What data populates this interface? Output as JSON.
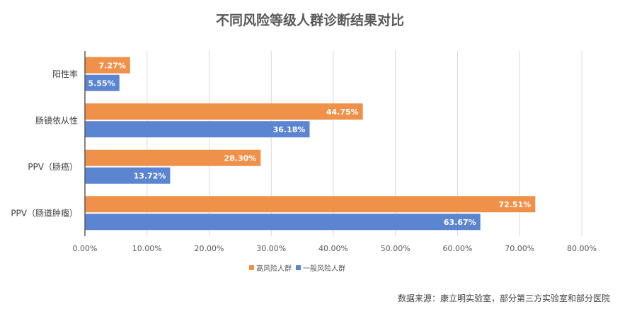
{
  "chart_data": {
    "type": "bar",
    "orientation": "horizontal",
    "title": "不同风险等级人群诊断结果对比",
    "categories": [
      "阳性率",
      "肠镜依从性",
      "PPV（肠癌）",
      "PPV（肠道肿瘤）"
    ],
    "series": [
      {
        "name": "高风险人群",
        "color": "#F0914A",
        "values": [
          7.27,
          44.75,
          28.3,
          72.51
        ],
        "labels": [
          "7.27%",
          "44.75%",
          "28.30%",
          "72.51%"
        ]
      },
      {
        "name": "一般风险人群",
        "color": "#5B84D1",
        "values": [
          5.55,
          36.18,
          13.72,
          63.67
        ],
        "labels": [
          "5.55%",
          "36.18%",
          "13.72%",
          "63.67%"
        ]
      }
    ],
    "xlim": [
      0,
      80
    ],
    "xticks": [
      "0.00%",
      "10.00%",
      "20.00%",
      "30.00%",
      "40.00%",
      "50.00%",
      "60.00%",
      "70.00%",
      "80.00%"
    ],
    "grid": true,
    "legend_position": "bottom"
  },
  "source": "数据来源：康立明实验室，部分第三方实验室和部分医院"
}
